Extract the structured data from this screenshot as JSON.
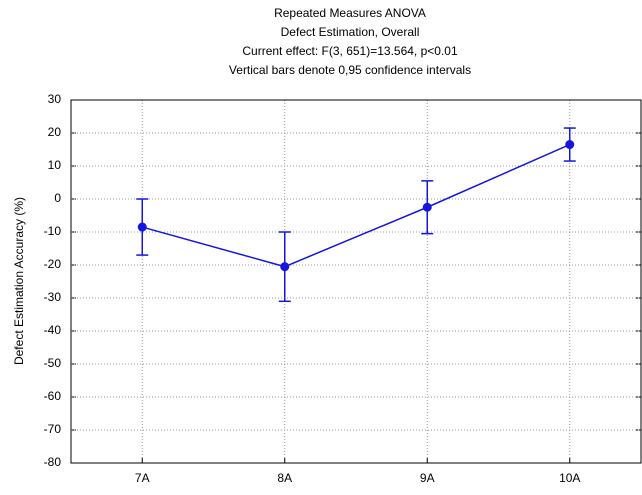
{
  "chart_data": {
    "type": "line",
    "title_lines": [
      "Repeated Measures ANOVA",
      "Defect Estimation, Overall",
      "Current effect: F(3, 651)=13.564, p<0.01",
      "Vertical bars denote 0,95 confidence intervals"
    ],
    "y_label": "Defect Estimation Accuracy (%)",
    "categories": [
      "7A",
      "8A",
      "9A",
      "10A"
    ],
    "series": [
      {
        "name": "Defect Estimation",
        "color": "#1515e0",
        "values": [
          -8.5,
          -20.5,
          -2.5,
          16.5
        ],
        "errors": [
          8.5,
          10.5,
          8,
          5
        ]
      }
    ],
    "ylim": [
      -80,
      30
    ],
    "yticks": [
      -80,
      -70,
      -60,
      -50,
      -40,
      -30,
      -20,
      -10,
      0,
      10,
      20,
      30
    ],
    "grid": true
  }
}
